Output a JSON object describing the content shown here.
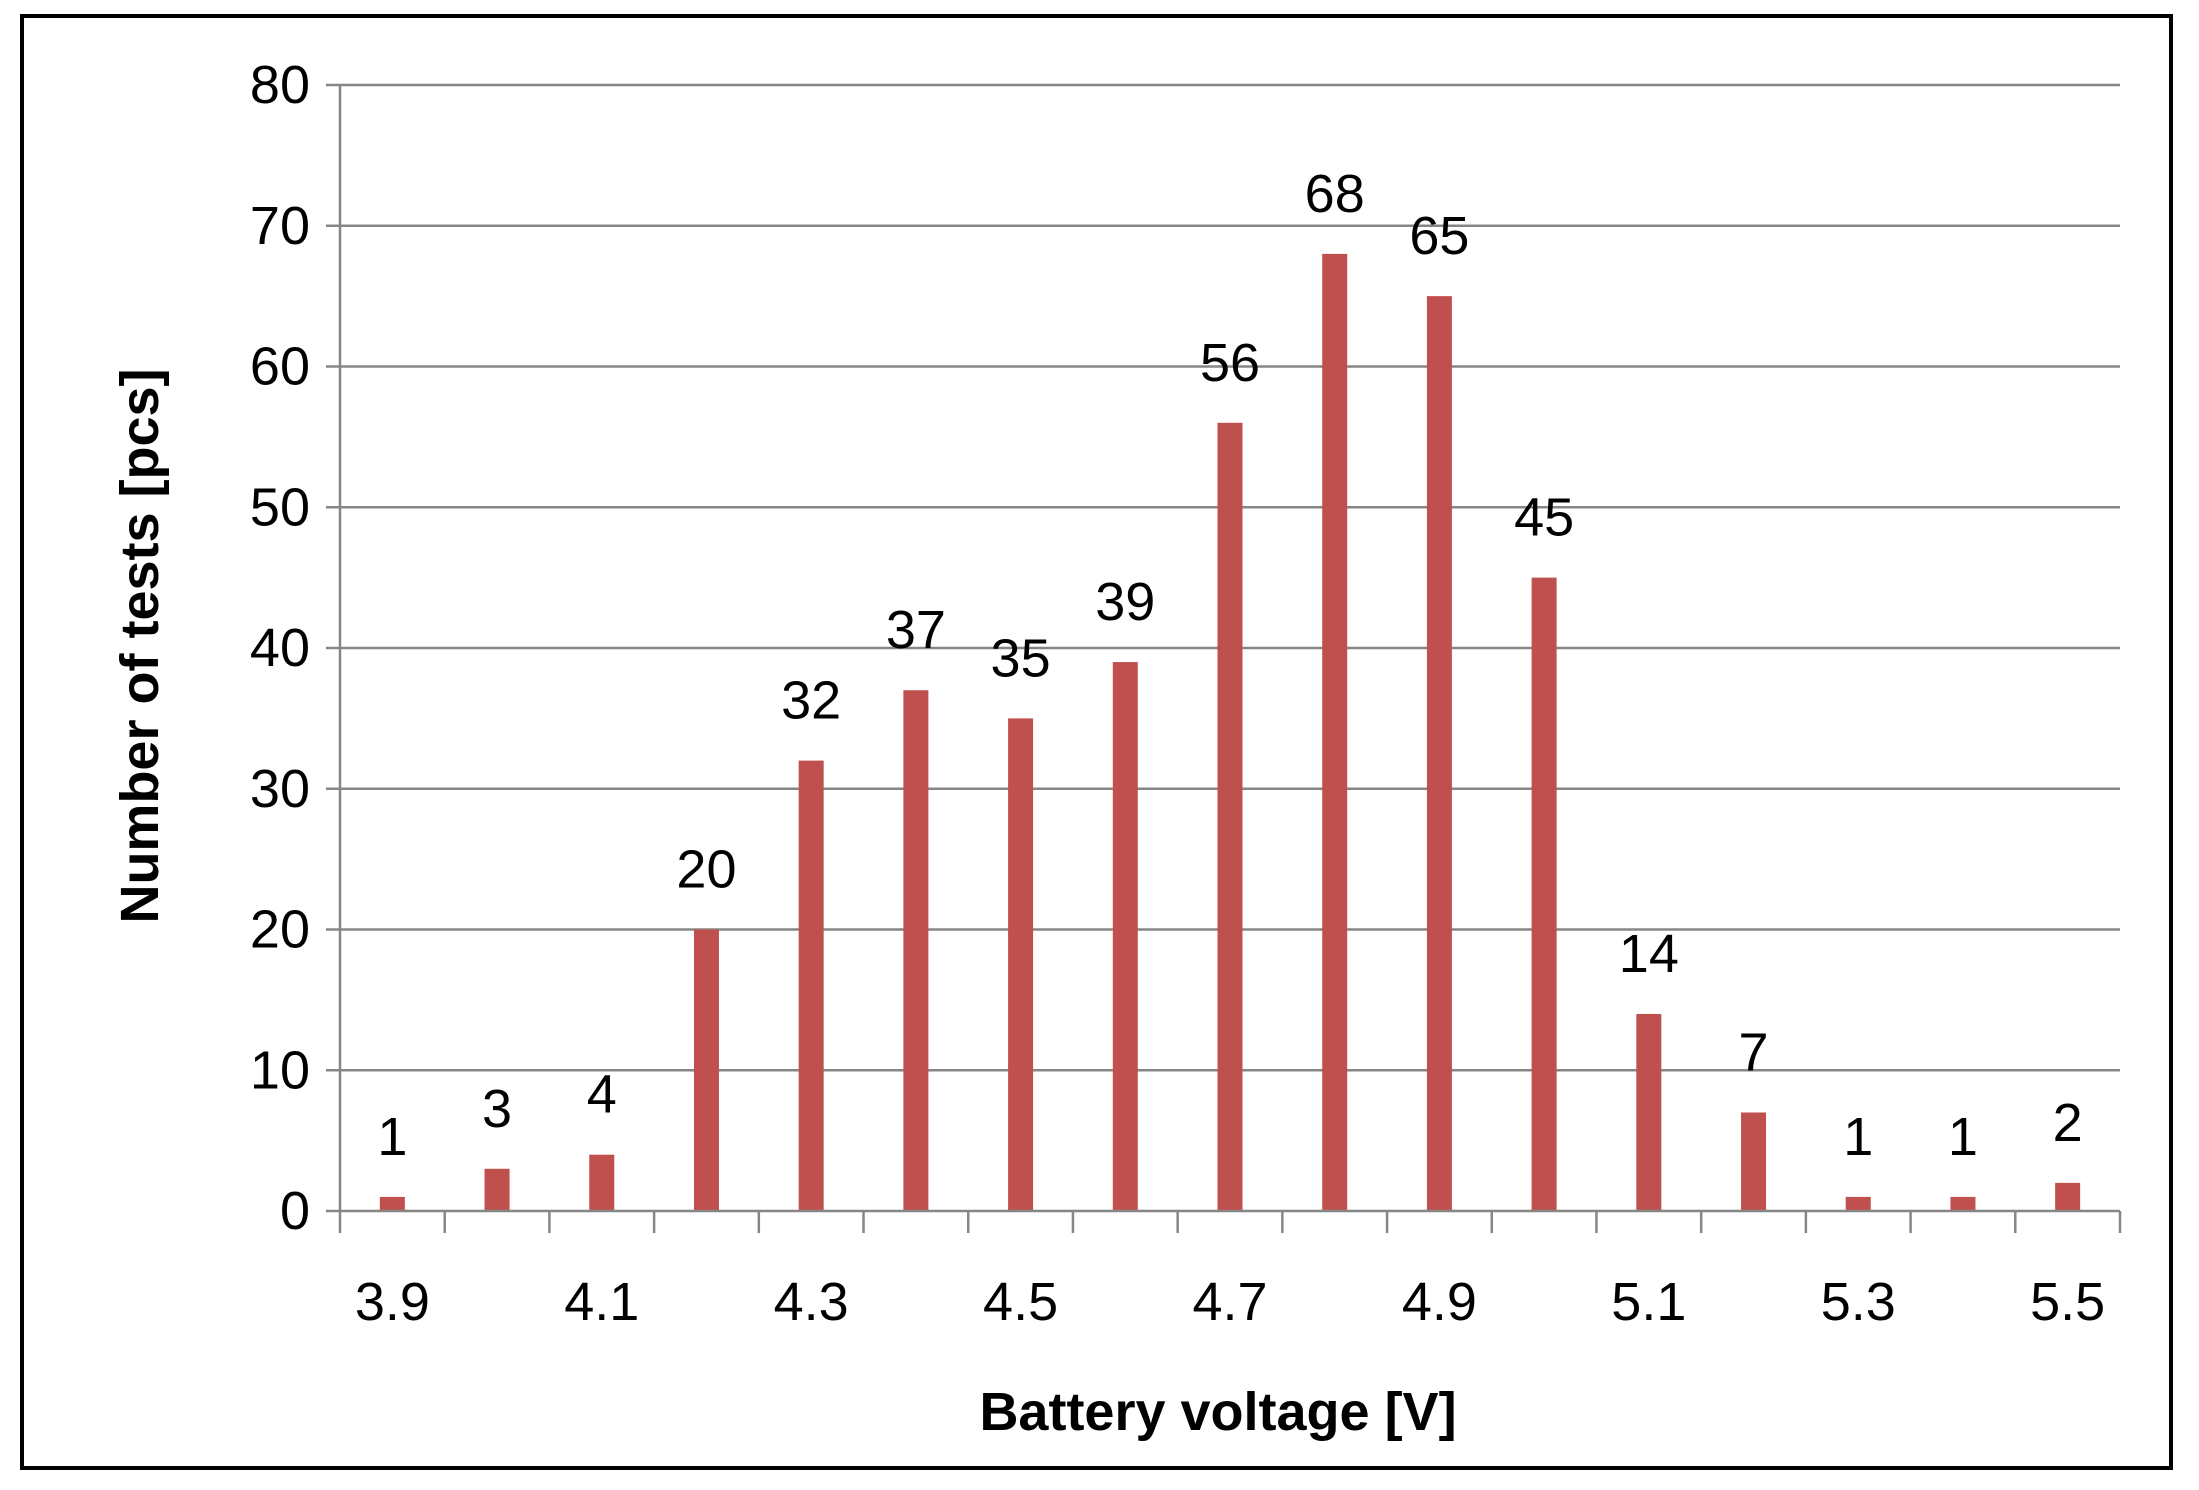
{
  "chart_data": {
    "type": "bar",
    "title": "",
    "xlabel": "Battery voltage [V]",
    "ylabel": "Number of tests [pcs]",
    "categories": [
      "3.9",
      "4.0",
      "4.1",
      "4.2",
      "4.3",
      "4.4",
      "4.5",
      "4.6",
      "4.7",
      "4.8",
      "4.9",
      "5.0",
      "5.1",
      "5.2",
      "5.3",
      "5.4",
      "5.5"
    ],
    "x_tick_labels": [
      "3.9",
      "",
      "4.1",
      "",
      "4.3",
      "",
      "4.5",
      "",
      "4.7",
      "",
      "4.9",
      "",
      "5.1",
      "",
      "5.3",
      "",
      "5.5"
    ],
    "values": [
      1,
      3,
      4,
      20,
      32,
      37,
      35,
      39,
      56,
      68,
      65,
      45,
      14,
      7,
      1,
      1,
      2
    ],
    "data_labels": [
      "1",
      "3",
      "4",
      "20",
      "32",
      "37",
      "35",
      "39",
      "56",
      "68",
      "65",
      "45",
      "14",
      "7",
      "1",
      "1",
      "2"
    ],
    "ylim": [
      0,
      80
    ],
    "y_ticks": [
      0,
      10,
      20,
      30,
      40,
      50,
      60,
      70,
      80
    ],
    "y_tick_labels": [
      "0",
      "10",
      "20",
      "30",
      "40",
      "50",
      "60",
      "70",
      "80"
    ],
    "grid": "horizontal",
    "legend": "none",
    "bar_color": "#c0504d",
    "grid_color": "#868686"
  }
}
